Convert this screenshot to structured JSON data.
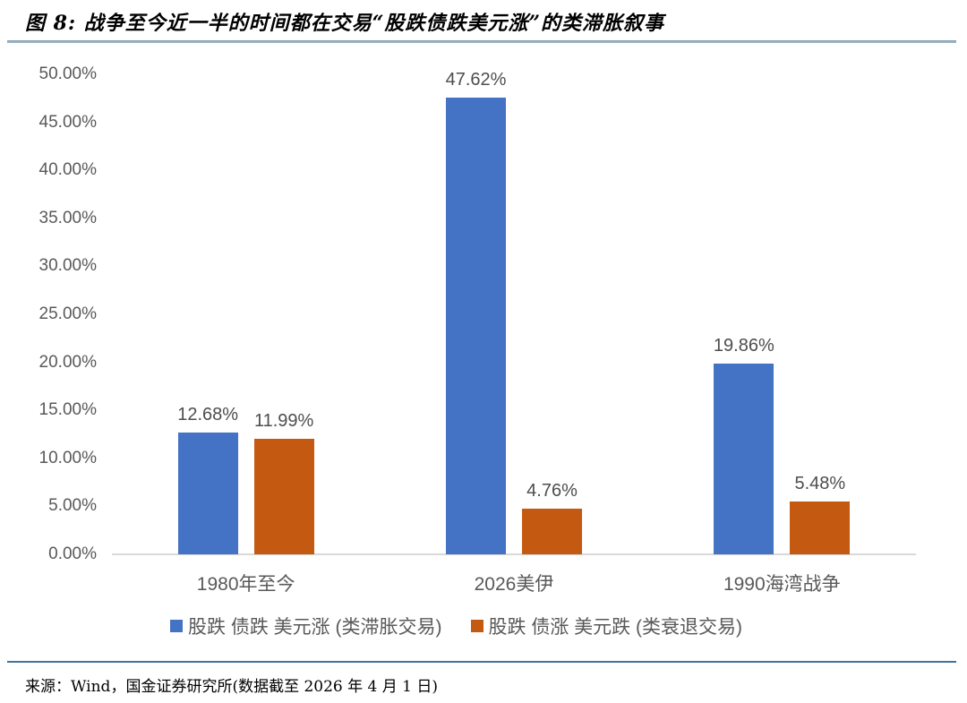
{
  "figure": {
    "title": "图 8: 战争至今近一半的时间都在交易“股跌债跌美元涨”的类滞胀叙事",
    "source": "来源：Wind，国金证券研究所(数据截至 2026 年 4 月 1 日)"
  },
  "colors": {
    "series1_blue": "#4472C4",
    "series2_orange": "#C45911",
    "axis_line": "#D9D9D9",
    "tick_text": "#595959",
    "value_text": "#4D4D4D",
    "title_divider": "#9DB2C2",
    "bottom_rule": "#41719C"
  },
  "chart_data": {
    "type": "bar",
    "title": "图 8: 战争至今近一半的时间都在交易“股跌债跌美元涨”的类滞胀叙事",
    "categories": [
      "1980年至今",
      "2026美伊",
      "1990海湾战争"
    ],
    "series": [
      {
        "name": "股跌 债跌 美元涨 (类滞胀交易)",
        "color": "#4472C4",
        "values": [
          12.68,
          47.62,
          19.86
        ],
        "labels": [
          "12.68%",
          "47.62%",
          "19.86%"
        ]
      },
      {
        "name": "股跌 债涨 美元跌 (类衰退交易)",
        "color": "#C45911",
        "values": [
          11.99,
          4.76,
          5.48
        ],
        "labels": [
          "11.99%",
          "4.76%",
          "5.48%"
        ]
      }
    ],
    "xlabel": "",
    "ylabel": "",
    "ylim": [
      0,
      50
    ],
    "ytick_step": 5,
    "ytick_labels": [
      "0.00%",
      "5.00%",
      "10.00%",
      "15.00%",
      "20.00%",
      "25.00%",
      "30.00%",
      "35.00%",
      "40.00%",
      "45.00%",
      "50.00%"
    ],
    "grid": false,
    "legend_position": "bottom"
  }
}
